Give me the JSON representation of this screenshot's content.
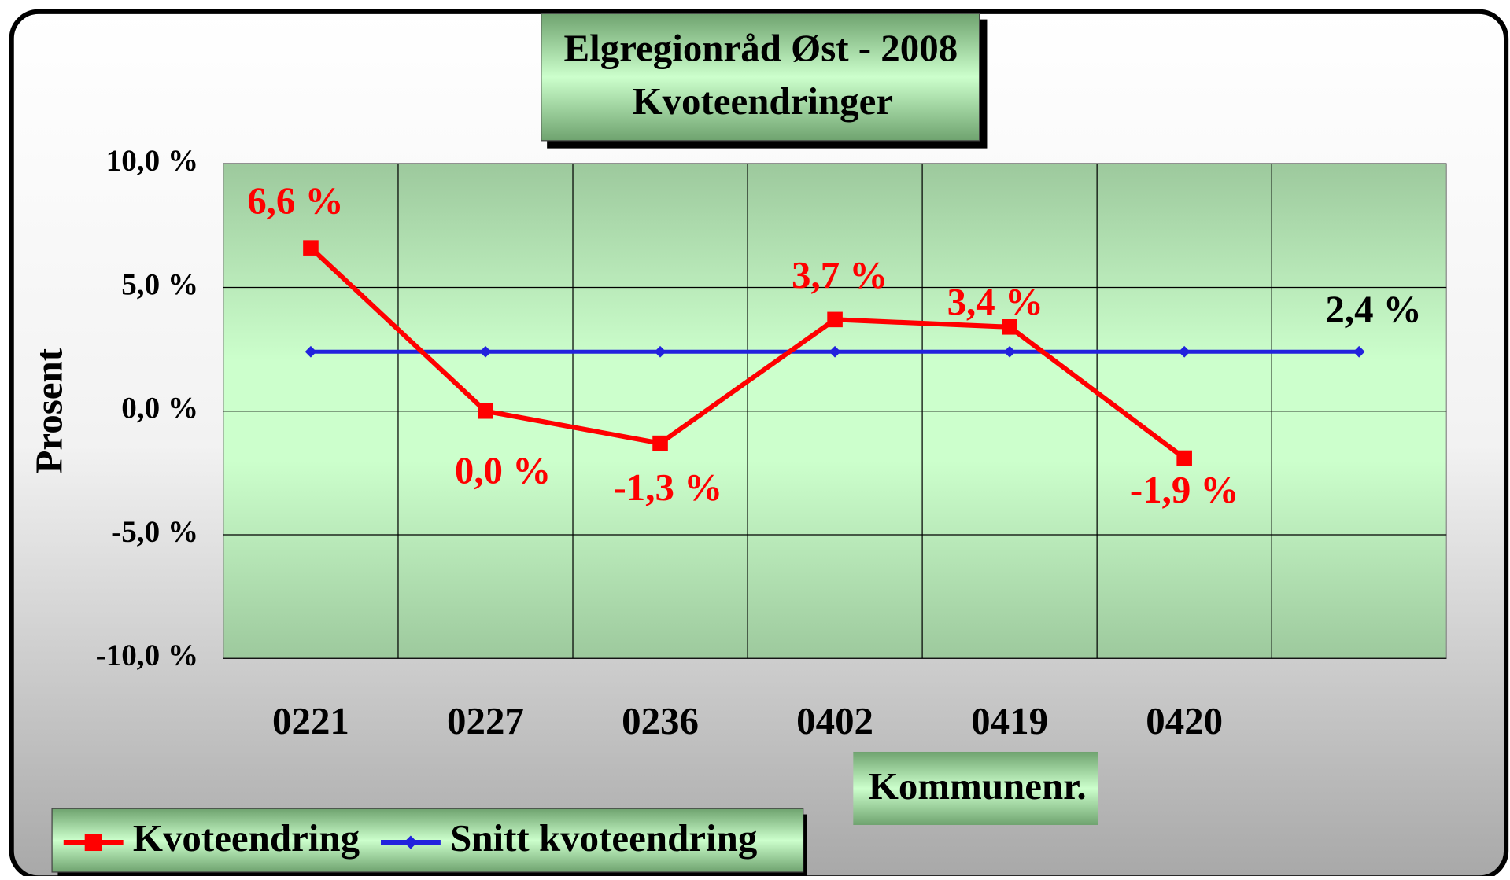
{
  "chart_data": {
    "type": "line",
    "title": [
      "Elgregionråd Øst - 2008",
      "Kvoteendringer"
    ],
    "x_label": "Kommunenr.",
    "y_label": "Prosent",
    "categories": [
      "0221",
      "0227",
      "0236",
      "0402",
      "0419",
      "0420",
      null
    ],
    "series": [
      {
        "name": "Kvoteendring",
        "color": "#ff0000",
        "marker": "square",
        "values": [
          6.6,
          0.0,
          -1.3,
          3.7,
          3.4,
          -1.9,
          null
        ],
        "value_labels": [
          "6,6 %",
          "0,0 %",
          "-1,3 %",
          "3,7 %",
          "3,4 %",
          "-1,9 %",
          null
        ]
      },
      {
        "name": "Snitt kvoteendring",
        "color": "#2222dd",
        "marker": "diamond",
        "values": [
          2.4,
          2.4,
          2.4,
          2.4,
          2.4,
          2.4,
          2.4
        ],
        "value_labels": [
          null,
          null,
          null,
          null,
          null,
          null,
          "2,4 %"
        ]
      }
    ],
    "ylim": [
      -10,
      10
    ],
    "yticks": [
      {
        "value": -10,
        "label": "-10,0 %"
      },
      {
        "value": -5,
        "label": "-5,0 %"
      },
      {
        "value": 0,
        "label": "0,0 %"
      },
      {
        "value": 5,
        "label": "5,0 %"
      },
      {
        "value": 10,
        "label": "10,0 %"
      }
    ],
    "grid": true,
    "legend": "bottom-left"
  }
}
